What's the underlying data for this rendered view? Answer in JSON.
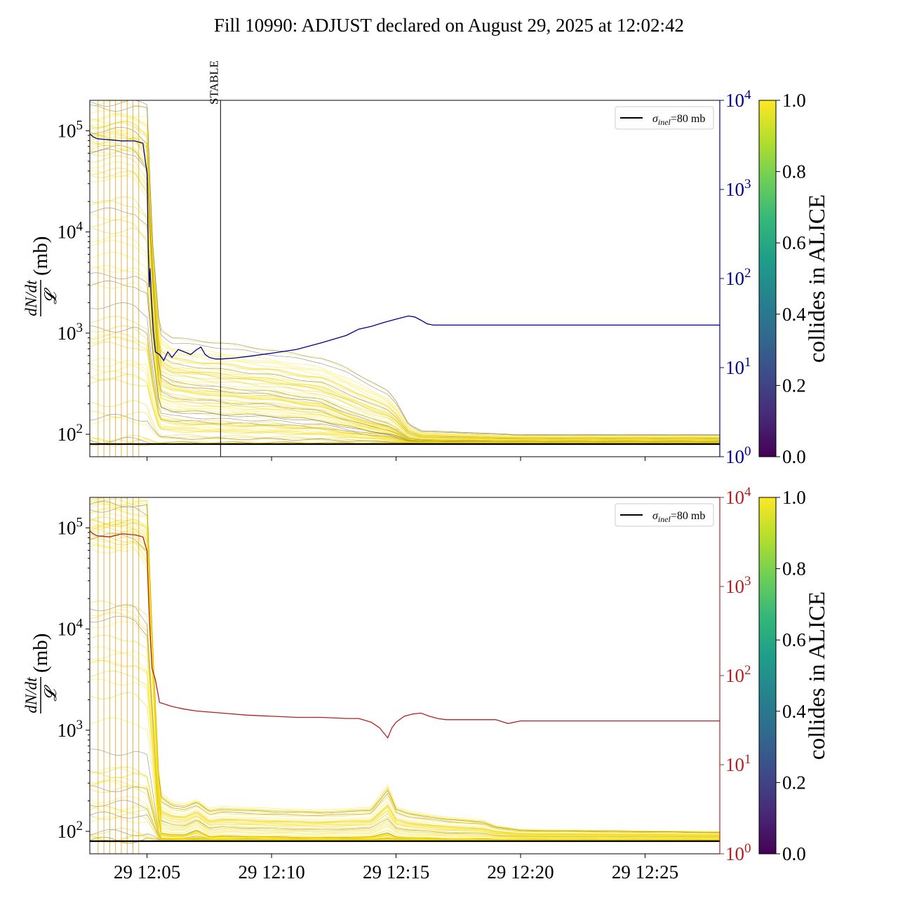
{
  "title": "Fill 10990: ADJUST declared on August 29, 2025 at 12:02:42",
  "colors": {
    "right_axis_top": "#00008b",
    "right_axis_bottom": "#b22222",
    "viridis": [
      "#440154",
      "#482878",
      "#3e4989",
      "#31688e",
      "#26828e",
      "#1f9e89",
      "#35b779",
      "#6ece58",
      "#b5de2b",
      "#fde725"
    ],
    "bundle_core": "#e8d000",
    "bundle_dark": "#5a4a30"
  },
  "chart_data": [
    {
      "type": "line",
      "panel": "top",
      "ylabel_num": "dN/dt",
      "ylabel_den": "𝓛",
      "ylabel_unit": "(mb)",
      "yscale": "log",
      "ylim": [
        60,
        200000
      ],
      "y_ticks": [
        {
          "value": 100,
          "base": "10",
          "exp": "2"
        },
        {
          "value": 1000,
          "base": "10",
          "exp": "3"
        },
        {
          "value": 10000,
          "base": "10",
          "exp": "4"
        },
        {
          "value": 100000,
          "base": "10",
          "exp": "5"
        }
      ],
      "xlim": [
        "2025-08-29 12:02:42",
        "2025-08-29 12:28:00"
      ],
      "x_ticks": [],
      "y2scale": "log",
      "y2lim": [
        1,
        10000
      ],
      "y2_ticks": [
        {
          "value": 1,
          "base": "10",
          "exp": "0"
        },
        {
          "value": 10,
          "base": "10",
          "exp": "1"
        },
        {
          "value": 100,
          "base": "10",
          "exp": "2"
        },
        {
          "value": 1000,
          "base": "10",
          "exp": "3"
        },
        {
          "value": 10000,
          "base": "10",
          "exp": "4"
        }
      ],
      "legend": {
        "label_sym": "σ",
        "label_sub": "inel",
        "label_rest": "=80 mb",
        "placement": "upper right"
      },
      "hline": {
        "value": 80
      },
      "vline": {
        "time": "2025-08-29 12:07:57",
        "label": "STABLE"
      },
      "bundle_curve": {
        "x": [
          "12:02:42",
          "12:04:30",
          "12:05:00",
          "12:05:12",
          "12:05:30",
          "12:06:00",
          "12:07:00",
          "12:08:00",
          "12:10:00",
          "12:12:00",
          "12:13:00",
          "12:14:00",
          "12:14:40",
          "12:15:00",
          "12:15:30",
          "12:16:00",
          "12:18:00",
          "12:20:00",
          "12:24:00",
          "12:28:00"
        ],
        "upper": [
          200000,
          200000,
          200000,
          10000,
          1200,
          950,
          900,
          850,
          720,
          600,
          480,
          350,
          280,
          220,
          130,
          110,
          105,
          100,
          100,
          100
        ],
        "core": [
          60000,
          60000,
          40000,
          4000,
          350,
          300,
          280,
          260,
          240,
          200,
          160,
          130,
          120,
          110,
          90,
          87,
          86,
          85,
          85,
          85
        ]
      },
      "series": [
        {
          "color": "#00008b",
          "axis": "right",
          "x": [
            "12:02:42",
            "12:02:50",
            "12:03:00",
            "12:03:30",
            "12:04:00",
            "12:04:30",
            "12:04:50",
            "12:05:00",
            "12:05:03",
            "12:05:05",
            "12:05:07",
            "12:05:10",
            "12:05:15",
            "12:05:20",
            "12:05:30",
            "12:05:40",
            "12:05:50",
            "12:06:00",
            "12:06:15",
            "12:06:30",
            "12:06:45",
            "12:07:00",
            "12:07:10",
            "12:07:20",
            "12:07:30",
            "12:07:45",
            "12:08:00",
            "12:08:30",
            "12:09:00",
            "12:10:00",
            "12:11:00",
            "12:12:00",
            "12:13:00",
            "12:13:30",
            "12:14:00",
            "12:14:30",
            "12:15:00",
            "12:15:30",
            "12:15:45",
            "12:16:00",
            "12:16:15",
            "12:16:30",
            "12:17:00",
            "12:18:00",
            "12:20:00",
            "12:24:00",
            "12:28:00"
          ],
          "y": [
            4200,
            3900,
            3700,
            3600,
            3500,
            3500,
            3300,
            1500,
            200,
            80,
            130,
            60,
            25,
            15,
            14,
            12,
            15,
            13,
            16,
            15,
            14,
            16,
            17,
            14,
            13,
            12.5,
            12.5,
            12.8,
            13.3,
            14.5,
            16,
            19,
            23,
            27,
            29,
            32,
            35,
            38,
            37,
            34,
            31,
            30,
            30,
            30,
            30,
            30,
            30
          ]
        }
      ]
    },
    {
      "type": "line",
      "panel": "bottom",
      "ylabel_num": "dN/dt",
      "ylabel_den": "𝓛",
      "ylabel_unit": "(mb)",
      "yscale": "log",
      "ylim": [
        60,
        200000
      ],
      "y_ticks": [
        {
          "value": 100,
          "base": "10",
          "exp": "2"
        },
        {
          "value": 1000,
          "base": "10",
          "exp": "3"
        },
        {
          "value": 10000,
          "base": "10",
          "exp": "4"
        },
        {
          "value": 100000,
          "base": "10",
          "exp": "5"
        }
      ],
      "xlim": [
        "2025-08-29 12:02:42",
        "2025-08-29 12:28:00"
      ],
      "x_ticks": [
        {
          "time": "12:05:00",
          "label": "29 12:05"
        },
        {
          "time": "12:10:00",
          "label": "29 12:10"
        },
        {
          "time": "12:15:00",
          "label": "29 12:15"
        },
        {
          "time": "12:20:00",
          "label": "29 12:20"
        },
        {
          "time": "12:25:00",
          "label": "29 12:25"
        }
      ],
      "y2scale": "log",
      "y2lim": [
        1,
        10000
      ],
      "y2_ticks": [
        {
          "value": 1,
          "base": "10",
          "exp": "0"
        },
        {
          "value": 10,
          "base": "10",
          "exp": "1"
        },
        {
          "value": 100,
          "base": "10",
          "exp": "2"
        },
        {
          "value": 1000,
          "base": "10",
          "exp": "3"
        },
        {
          "value": 10000,
          "base": "10",
          "exp": "4"
        }
      ],
      "legend": {
        "label_sym": "σ",
        "label_sub": "inel",
        "label_rest": "=80 mb",
        "placement": "upper right"
      },
      "hline": {
        "value": 80
      },
      "bundle_curve": {
        "x": [
          "12:02:42",
          "12:04:30",
          "12:05:00",
          "12:05:12",
          "12:05:30",
          "12:06:00",
          "12:06:30",
          "12:07:00",
          "12:07:30",
          "12:08:00",
          "12:10:00",
          "12:12:00",
          "12:14:00",
          "12:14:40",
          "12:15:00",
          "12:15:30",
          "12:17:00",
          "12:18:30",
          "12:19:00",
          "12:20:00",
          "12:28:00"
        ],
        "upper": [
          200000,
          200000,
          200000,
          10000,
          250,
          200,
          190,
          210,
          170,
          180,
          170,
          165,
          175,
          300,
          180,
          160,
          140,
          130,
          115,
          105,
          100
        ],
        "core": [
          60000,
          60000,
          40000,
          4000,
          100,
          95,
          95,
          110,
          90,
          92,
          90,
          88,
          90,
          100,
          90,
          88,
          85,
          85,
          84,
          84,
          84
        ]
      },
      "series": [
        {
          "color": "#b22222",
          "axis": "right",
          "x": [
            "12:02:42",
            "12:02:50",
            "12:03:00",
            "12:03:30",
            "12:04:00",
            "12:04:30",
            "12:04:50",
            "12:05:00",
            "12:05:02",
            "12:05:05",
            "12:05:08",
            "12:05:12",
            "12:05:20",
            "12:05:30",
            "12:06:00",
            "12:06:30",
            "12:07:00",
            "12:08:00",
            "12:09:00",
            "12:10:00",
            "12:11:00",
            "12:12:00",
            "12:13:00",
            "12:13:30",
            "12:14:00",
            "12:14:20",
            "12:14:40",
            "12:14:50",
            "12:15:00",
            "12:15:20",
            "12:15:40",
            "12:16:00",
            "12:16:20",
            "12:16:40",
            "12:17:00",
            "12:18:00",
            "12:19:00",
            "12:19:30",
            "12:20:00",
            "12:24:00",
            "12:28:00"
          ],
          "y": [
            4200,
            3900,
            3700,
            3600,
            3900,
            3800,
            3600,
            2500,
            1200,
            500,
            250,
            120,
            90,
            50,
            45,
            42,
            40,
            38,
            36,
            35,
            34,
            34,
            33,
            33,
            30,
            26,
            20,
            26,
            30,
            35,
            37,
            38,
            35,
            33,
            32,
            32,
            32,
            29,
            31,
            31,
            31
          ]
        }
      ]
    }
  ],
  "colorbar": {
    "label": "collides in ALICE",
    "ticks": [
      "0.0",
      "0.2",
      "0.4",
      "0.6",
      "0.8",
      "1.0"
    ]
  }
}
